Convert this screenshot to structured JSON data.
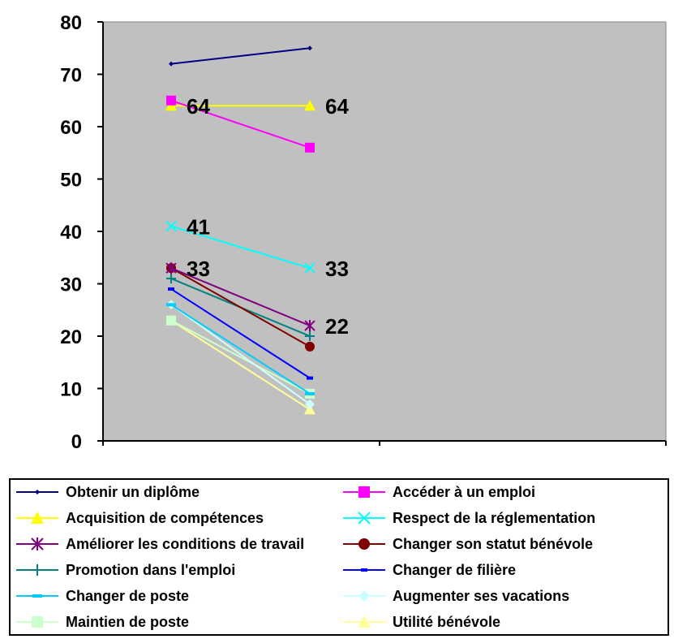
{
  "chart_data": {
    "type": "line",
    "x": [
      "",
      ""
    ],
    "ylim": [
      0,
      80
    ],
    "yticks": [
      0,
      10,
      20,
      30,
      40,
      50,
      60,
      70,
      80
    ],
    "plot_background": "#c0c0c0",
    "grid": false,
    "legend_position": "bottom",
    "series": [
      {
        "name": "Obtenir un diplôme",
        "values": [
          72,
          75
        ],
        "color": "#000080",
        "marker": "diamond-small"
      },
      {
        "name": "Accéder à un emploi",
        "values": [
          65,
          56
        ],
        "color": "#ff00ff",
        "marker": "square"
      },
      {
        "name": "Acquisition de compétences",
        "values": [
          64,
          64
        ],
        "color": "#ffff00",
        "marker": "triangle"
      },
      {
        "name": "Respect de la réglementation",
        "values": [
          41,
          33
        ],
        "color": "#00ffff",
        "marker": "x"
      },
      {
        "name": "Améliorer les conditions de travail",
        "values": [
          33,
          22
        ],
        "color": "#800080",
        "marker": "star"
      },
      {
        "name": "Changer son statut bénévole",
        "values": [
          33,
          18
        ],
        "color": "#800000",
        "marker": "circle"
      },
      {
        "name": "Promotion dans l'emploi",
        "values": [
          31,
          20
        ],
        "color": "#008080",
        "marker": "plus"
      },
      {
        "name": "Changer de filière",
        "values": [
          29,
          12
        ],
        "color": "#0000ff",
        "marker": "dash"
      },
      {
        "name": "Changer de poste",
        "values": [
          26,
          9
        ],
        "color": "#00ccff",
        "marker": "dash-wide"
      },
      {
        "name": "Augmenter ses vacations",
        "values": [
          26,
          7
        ],
        "color": "#ccffff",
        "marker": "diamond"
      },
      {
        "name": "Maintien de poste",
        "values": [
          23,
          9
        ],
        "color": "#ccffcc",
        "marker": "square"
      },
      {
        "name": "Utilité bénévole",
        "values": [
          23,
          6
        ],
        "color": "#ffff99",
        "marker": "triangle"
      }
    ],
    "annotations": [
      {
        "text": "64",
        "series": 2,
        "point": 0
      },
      {
        "text": "64",
        "series": 2,
        "point": 1
      },
      {
        "text": "41",
        "series": 3,
        "point": 0
      },
      {
        "text": "33",
        "series": 4,
        "point": 0
      },
      {
        "text": "33",
        "series": 3,
        "point": 1
      },
      {
        "text": "22",
        "series": 4,
        "point": 1
      }
    ]
  }
}
